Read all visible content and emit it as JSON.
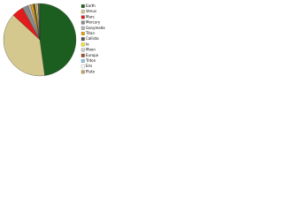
{
  "chart_data": {
    "type": "pie",
    "categories": [
      "Earth",
      "Venus",
      "Mars",
      "Mercury",
      "Ganymede",
      "Titan",
      "Callisto",
      "Io",
      "Moon",
      "Europa",
      "Triton",
      "Eris",
      "Pluto"
    ],
    "values": [
      47.9,
      39.1,
      5.2,
      2.6,
      1.2,
      1.1,
      0.9,
      0.7,
      0.6,
      0.4,
      0.2,
      0.1,
      0.1
    ],
    "colors": [
      "#1b5e20",
      "#d4c88e",
      "#e21b1b",
      "#8a8a8a",
      "#b5b5b5",
      "#f2a007",
      "#555555",
      "#f5e51a",
      "#cfcfcf",
      "#a0522d",
      "#8ec9f0",
      "#ffffff",
      "#c9a064"
    ],
    "legend": "right"
  }
}
